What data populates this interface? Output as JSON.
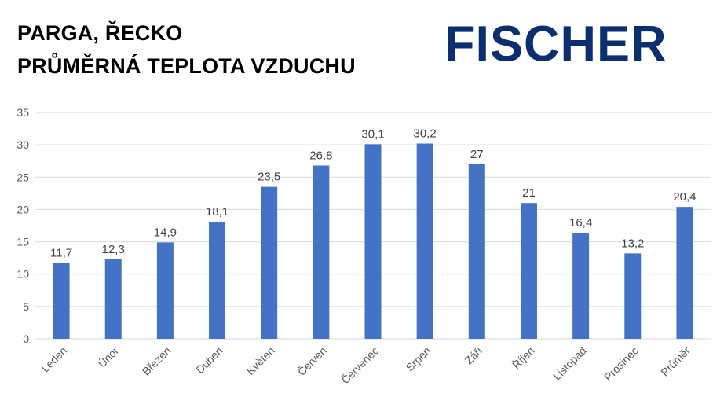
{
  "header": {
    "title_line1": "PARGA, ŘECKO",
    "title_line2": "PRŮMĚRNÁ TEPLOTA VZDUCHU",
    "logo_text": "FISCHER",
    "logo_color": "#0b2f6e"
  },
  "chart_data": {
    "type": "bar",
    "title": "PARGA, ŘECKO PRŮMĚRNÁ TEPLOTA VZDUCHU",
    "categories": [
      "Leden",
      "Únor",
      "Březen",
      "Duben",
      "Květen",
      "Červen",
      "Červenec",
      "Srpen",
      "Září",
      "Říjen",
      "Listopad",
      "Prosinec",
      "Průměr"
    ],
    "values": [
      11.7,
      12.3,
      14.9,
      18.1,
      23.5,
      26.8,
      30.1,
      30.2,
      27,
      21,
      16.4,
      13.2,
      20.4
    ],
    "value_labels": [
      "11,7",
      "12,3",
      "14,9",
      "18,1",
      "23,5",
      "26,8",
      "30,1",
      "30,2",
      "27",
      "21",
      "16,4",
      "13,2",
      "20,4"
    ],
    "yticks": [
      0,
      5,
      10,
      15,
      20,
      25,
      30,
      35
    ],
    "ylim": [
      0,
      35
    ],
    "xlabel": "",
    "ylabel": "",
    "grid": true,
    "bar_color": "#4472c4",
    "grid_color": "#d9d9d9"
  }
}
